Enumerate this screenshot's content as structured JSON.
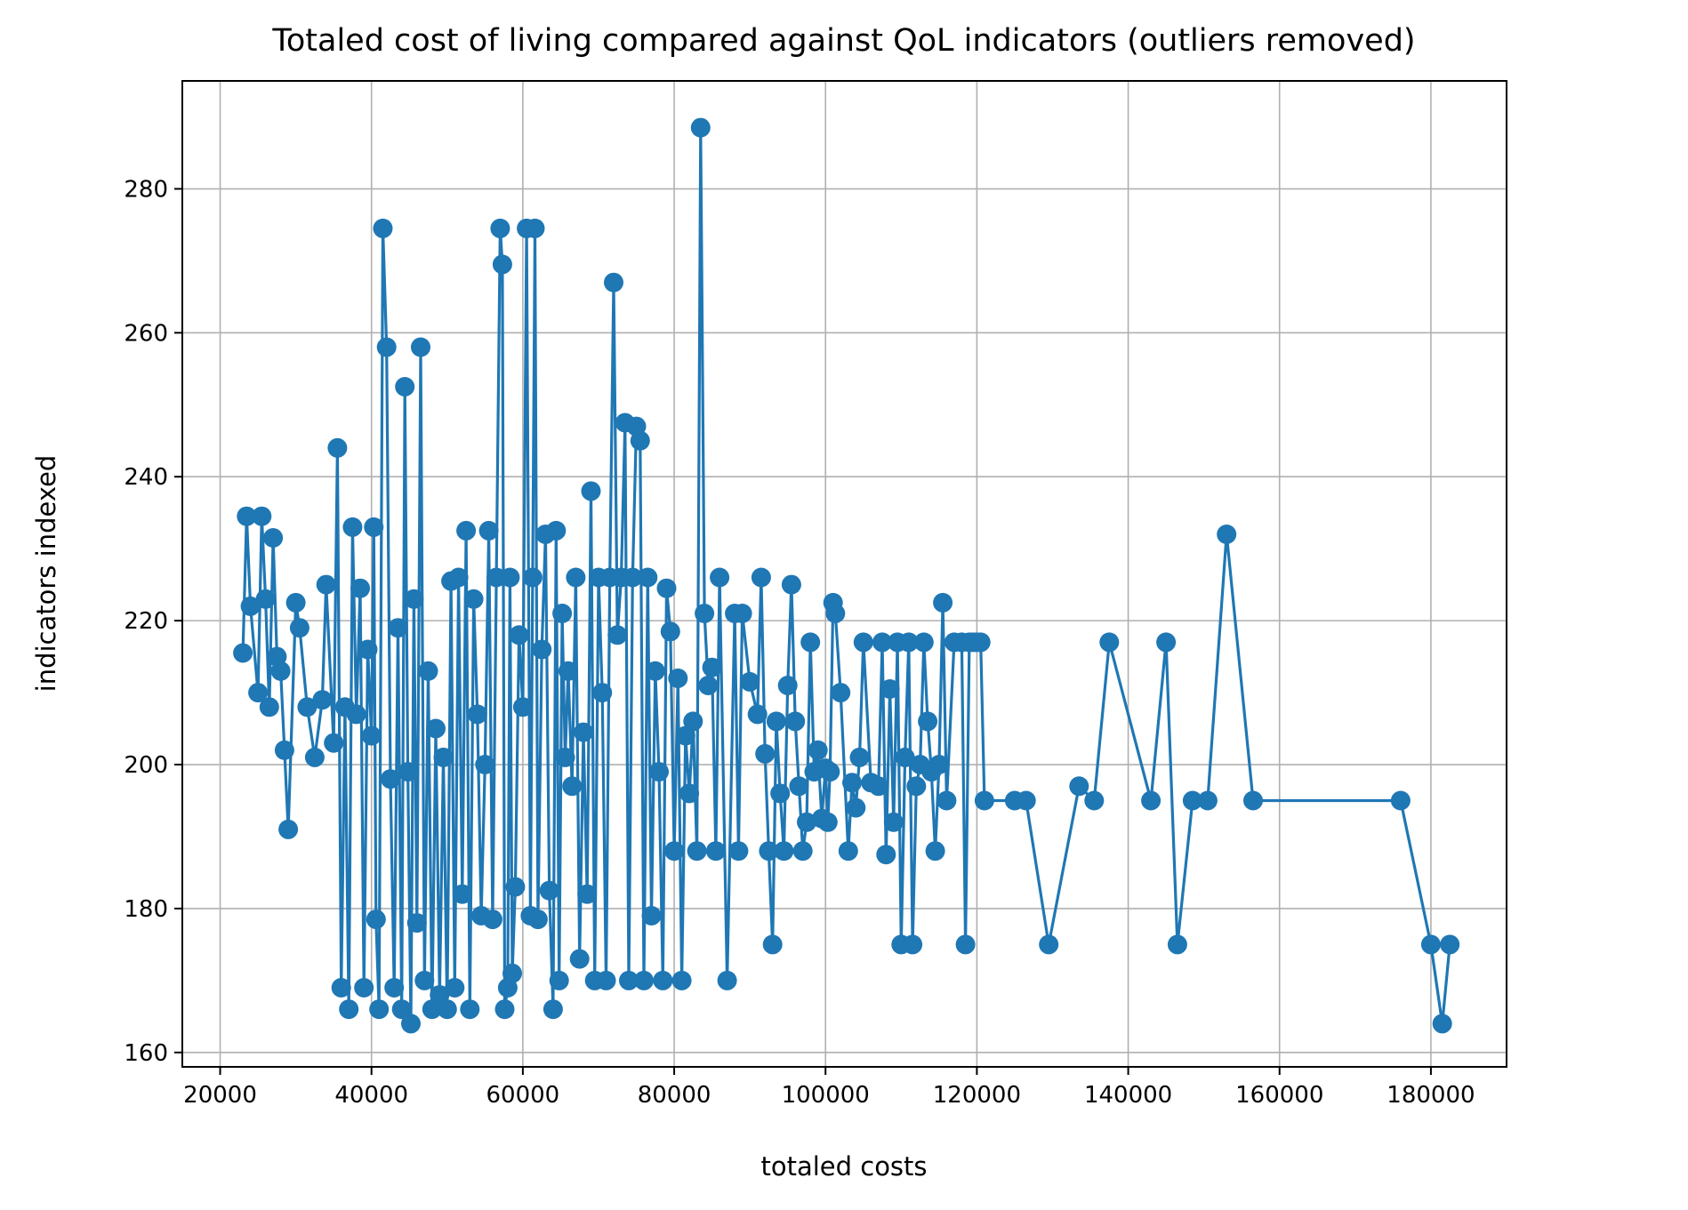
{
  "chart_data": {
    "type": "line",
    "title": "Totaled cost of living compared against QoL indicators (outliers removed)",
    "xlabel": "totaled costs",
    "ylabel": "indicators indexed",
    "xlim": [
      15000,
      190000
    ],
    "ylim": [
      158,
      295
    ],
    "xticks": [
      20000,
      40000,
      60000,
      80000,
      100000,
      120000,
      140000,
      160000,
      180000
    ],
    "yticks": [
      160,
      180,
      200,
      220,
      240,
      260,
      280
    ],
    "grid": true,
    "legend": "none",
    "marker": "circle",
    "color": "#1f77b4",
    "series": [
      {
        "x": [
          23000,
          23500,
          24000,
          25000,
          25500,
          26000,
          26500,
          27000,
          27500,
          28000,
          28500,
          29000,
          30000,
          30500,
          31500,
          32500,
          33500,
          34000,
          35000,
          35500,
          36000,
          36500,
          37000,
          37500,
          38000,
          38500,
          39000,
          39500,
          40000,
          40300,
          40600,
          41000,
          41500,
          42000,
          42500,
          43000,
          43500,
          44000,
          44400,
          44800,
          45200,
          45600,
          46000,
          46500,
          47000,
          47500,
          48000,
          48500,
          49000,
          49500,
          50000,
          50500,
          51000,
          51500,
          52000,
          52500,
          53000,
          53500,
          54000,
          54500,
          55000,
          55500,
          56000,
          56500,
          57000,
          57300,
          57600,
          58000,
          58300,
          58600,
          59000,
          59500,
          60000,
          60500,
          61000,
          61300,
          61600,
          62000,
          62500,
          63000,
          63500,
          64000,
          64400,
          64800,
          65200,
          65600,
          66000,
          66500,
          67000,
          67500,
          68000,
          68500,
          69000,
          69500,
          70000,
          70500,
          71000,
          71500,
          72000,
          72500,
          73000,
          73500,
          74000,
          74500,
          75000,
          75500,
          76000,
          76500,
          77000,
          77500,
          78000,
          78500,
          79000,
          79500,
          80000,
          80500,
          81000,
          81500,
          82000,
          82500,
          83000,
          83500,
          84000,
          84500,
          85000,
          85500,
          86000,
          87000,
          88000,
          88500,
          89000,
          90000,
          91000,
          91500,
          92000,
          92500,
          93000,
          93500,
          94000,
          94500,
          95000,
          95500,
          96000,
          96500,
          97000,
          97500,
          98000,
          98500,
          99000,
          99500,
          100000,
          100300,
          100600,
          101000,
          101300,
          102000,
          103000,
          103500,
          104000,
          104500,
          105000,
          106000,
          107000,
          107500,
          108000,
          108500,
          109000,
          109500,
          110000,
          110500,
          111000,
          111500,
          112000,
          112500,
          113000,
          113500,
          114000,
          114500,
          115000,
          115500,
          116000,
          117000,
          118000,
          118500,
          119000,
          119500,
          120000,
          120500,
          121000,
          125000,
          126500,
          129500,
          133500,
          135500,
          137500,
          143000,
          145000,
          146500,
          148500,
          150500,
          153000,
          156500,
          176000,
          180000,
          181500,
          182500
        ],
        "y": [
          215.5,
          234.5,
          222,
          210,
          234.5,
          223,
          208,
          231.5,
          215,
          213,
          202,
          191,
          222.5,
          219,
          208,
          201,
          209,
          225,
          203,
          244,
          169,
          208,
          166,
          233,
          207,
          224.5,
          169,
          216,
          204,
          233,
          178.5,
          166,
          274.5,
          258,
          198,
          169,
          219,
          166,
          252.5,
          199,
          164,
          223,
          178,
          258,
          170,
          213,
          166,
          205,
          168,
          201,
          166,
          225.5,
          169,
          226,
          182,
          232.5,
          166,
          223,
          207,
          179,
          200,
          232.5,
          178.5,
          226,
          274.5,
          269.5,
          166,
          169,
          226,
          171,
          183,
          218,
          208,
          274.5,
          179,
          226,
          274.5,
          178.5,
          216,
          232,
          182.5,
          166,
          232.5,
          170,
          221,
          201,
          213,
          197,
          226,
          173,
          204.5,
          182,
          238,
          170,
          226,
          210,
          170,
          226,
          267,
          218,
          226,
          247.5,
          170,
          226,
          247,
          245,
          170,
          226,
          179,
          213,
          199,
          170,
          224.5,
          218.5,
          188,
          212,
          170,
          204,
          196,
          206,
          188,
          288.5,
          221,
          211,
          213.5,
          188,
          226,
          170,
          221,
          188,
          221,
          211.5,
          207,
          226,
          201.5,
          188,
          175,
          206,
          196,
          188,
          211,
          225,
          206,
          197,
          188,
          192,
          217,
          199,
          202,
          192.5,
          199.5,
          192,
          199,
          222.5,
          221,
          210,
          188,
          197.5,
          194,
          201,
          217,
          197.5,
          197,
          217,
          187.5,
          210.5,
          192,
          217,
          175,
          201,
          217,
          175,
          197,
          200,
          217,
          206,
          199,
          188,
          200,
          222.5,
          195,
          217,
          217,
          175,
          217,
          217,
          217,
          217,
          195,
          195,
          195,
          175,
          197,
          195,
          217,
          195,
          217,
          175,
          195,
          195,
          232,
          195,
          195,
          175,
          164,
          175
        ]
      }
    ]
  }
}
